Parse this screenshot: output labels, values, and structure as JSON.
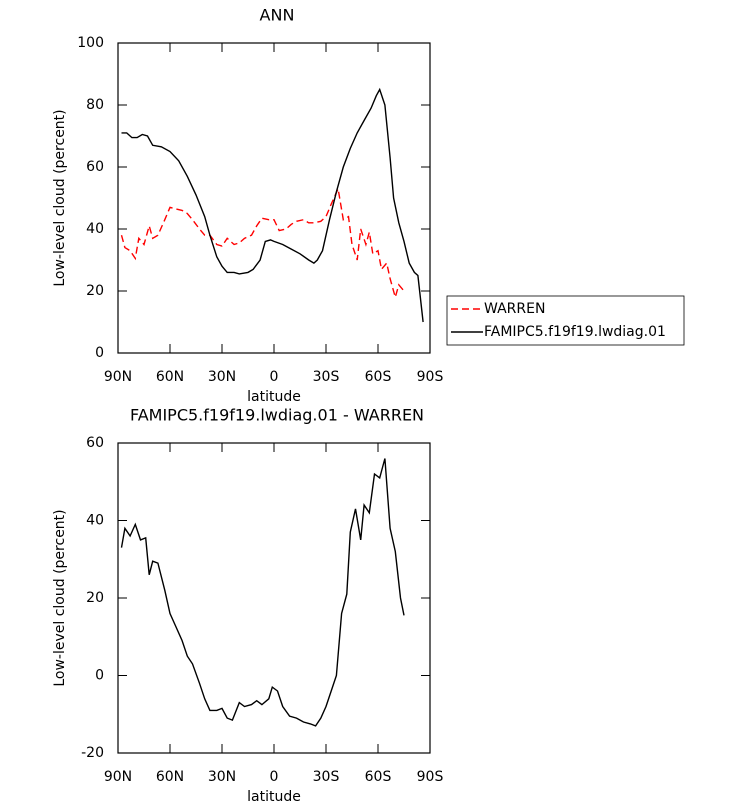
{
  "chart_data": [
    {
      "type": "line",
      "title": "ANN",
      "x_label": "latitude",
      "y_label": "Low-level cloud (percent)",
      "xlim": [
        90,
        -90
      ],
      "ylim": [
        0,
        100
      ],
      "xticks": [
        {
          "value": 90,
          "label": "90N"
        },
        {
          "value": 60,
          "label": "60N"
        },
        {
          "value": 30,
          "label": "30N"
        },
        0,
        {
          "value": -30,
          "label": "30S"
        },
        {
          "value": -60,
          "label": "60S"
        },
        {
          "value": -90,
          "label": "90S"
        }
      ],
      "yticks": [
        0,
        20,
        40,
        60,
        80,
        100
      ],
      "legend": "right",
      "series": [
        {
          "name": "WARREN",
          "color": "#ff0000",
          "dash": "dashed",
          "x": [
            88,
            86,
            83,
            80,
            78,
            75,
            72,
            70,
            67,
            63,
            60,
            57,
            53,
            50,
            47,
            43,
            40,
            37,
            33,
            30,
            27,
            23,
            20,
            17,
            13,
            10,
            7,
            3,
            0,
            -3,
            -7,
            -10,
            -13,
            -17,
            -20,
            -23,
            -27,
            -30,
            -33,
            -37,
            -40,
            -43,
            -45,
            -48,
            -50,
            -53,
            -55,
            -57,
            -60,
            -62,
            -65,
            -67,
            -70,
            -72,
            -75
          ],
          "values": [
            38,
            34,
            33,
            30.5,
            37,
            35,
            41,
            37,
            38,
            43,
            47,
            46.5,
            46,
            45,
            43,
            40,
            38,
            38,
            35,
            34.5,
            37,
            35,
            35.5,
            37,
            38,
            41,
            43.5,
            43,
            43,
            39.5,
            40,
            41.5,
            42.5,
            43,
            42,
            42,
            42.5,
            44,
            48,
            53,
            43,
            44,
            35,
            30,
            40,
            35,
            39,
            32,
            33,
            27,
            29,
            24,
            18,
            22,
            20
          ]
        },
        {
          "name": "FAMIPC5.f19f19.lwdiag.01",
          "color": "#000000",
          "dash": "solid",
          "x": [
            88,
            85,
            82,
            79,
            76,
            73,
            70,
            65,
            60,
            55,
            50,
            45,
            40,
            37,
            33,
            30,
            27,
            23,
            20,
            15,
            12,
            8,
            5,
            2,
            0,
            -5,
            -10,
            -15,
            -20,
            -23,
            -25,
            -28,
            -32,
            -36,
            -40,
            -44,
            -48,
            -52,
            -56,
            -59,
            -61,
            -64,
            -67,
            -69,
            -72,
            -75,
            -78,
            -81,
            -83,
            -86
          ],
          "values": [
            71,
            71,
            69.5,
            69.5,
            70.5,
            70,
            67,
            66.5,
            65,
            62,
            57,
            51,
            44,
            38,
            31,
            28,
            26,
            26,
            25.5,
            26,
            27,
            30,
            36,
            36.5,
            36,
            35,
            33.5,
            32,
            30,
            29,
            30,
            33,
            43,
            52,
            60,
            66,
            71,
            75,
            79,
            83,
            85,
            80,
            63,
            50,
            42,
            36,
            29,
            26,
            25,
            10
          ]
        }
      ]
    },
    {
      "type": "line",
      "title": "FAMIPC5.f19f19.lwdiag.01 - WARREN",
      "x_label": "latitude",
      "y_label": "Low-level cloud (percent)",
      "xlim": [
        90,
        -90
      ],
      "ylim": [
        -20,
        60
      ],
      "xticks": [
        {
          "value": 90,
          "label": "90N"
        },
        {
          "value": 60,
          "label": "60N"
        },
        {
          "value": 30,
          "label": "30N"
        },
        0,
        {
          "value": -30,
          "label": "30S"
        },
        {
          "value": -60,
          "label": "60S"
        },
        {
          "value": -90,
          "label": "90S"
        }
      ],
      "yticks": [
        -20,
        0,
        20,
        40,
        60
      ],
      "series": [
        {
          "color": "#000000",
          "dash": "solid",
          "x": [
            88,
            86,
            83,
            80,
            77,
            74,
            72,
            70,
            67,
            63,
            60,
            57,
            53,
            50,
            47,
            43,
            40,
            37,
            33,
            30,
            27,
            24,
            20,
            17,
            13,
            10,
            7,
            3,
            1,
            -2,
            -5,
            -9,
            -13,
            -17,
            -21,
            -24,
            -27,
            -30,
            -33,
            -36,
            -39,
            -42,
            -44,
            -47,
            -50,
            -52,
            -55,
            -58,
            -61,
            -64,
            -67,
            -70,
            -73,
            -75
          ],
          "values": [
            33,
            38,
            36,
            39,
            35,
            35.5,
            26,
            29.5,
            29,
            22,
            16,
            13,
            9,
            5,
            3,
            -2,
            -6,
            -9,
            -9,
            -8.5,
            -11,
            -11.5,
            -7,
            -8,
            -7.5,
            -6.5,
            -7.5,
            -6,
            -3,
            -4,
            -8,
            -10.5,
            -11,
            -12,
            -12.5,
            -13,
            -11,
            -8,
            -4,
            0,
            16,
            21,
            37,
            43,
            35,
            44,
            42,
            52,
            51,
            56,
            38,
            32,
            20,
            15.5
          ]
        }
      ]
    }
  ]
}
